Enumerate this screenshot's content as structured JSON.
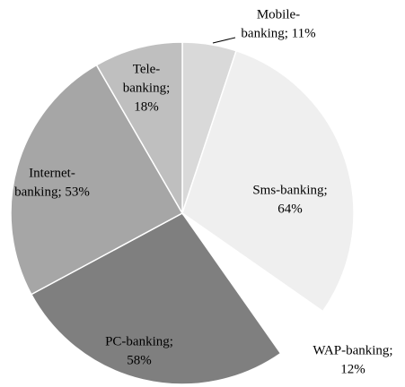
{
  "chart_data": {
    "type": "pie",
    "values": [
      11,
      64,
      12,
      58,
      53,
      18
    ],
    "value_labels": [
      [
        "Mobile-",
        "banking; 11%"
      ],
      [
        "Sms-banking;",
        "64%"
      ],
      [
        "WAP-banking;",
        "12%"
      ],
      [
        "PC-banking;",
        "58%"
      ],
      [
        "Internet-",
        "banking; 53%"
      ],
      [
        "Tele-",
        "banking;",
        "18%"
      ]
    ],
    "colors": [
      "#d9d9d9",
      "#efefef",
      "#ffffff",
      "#7f7f7f",
      "#a6a6a6",
      "#bfbfbf"
    ]
  }
}
